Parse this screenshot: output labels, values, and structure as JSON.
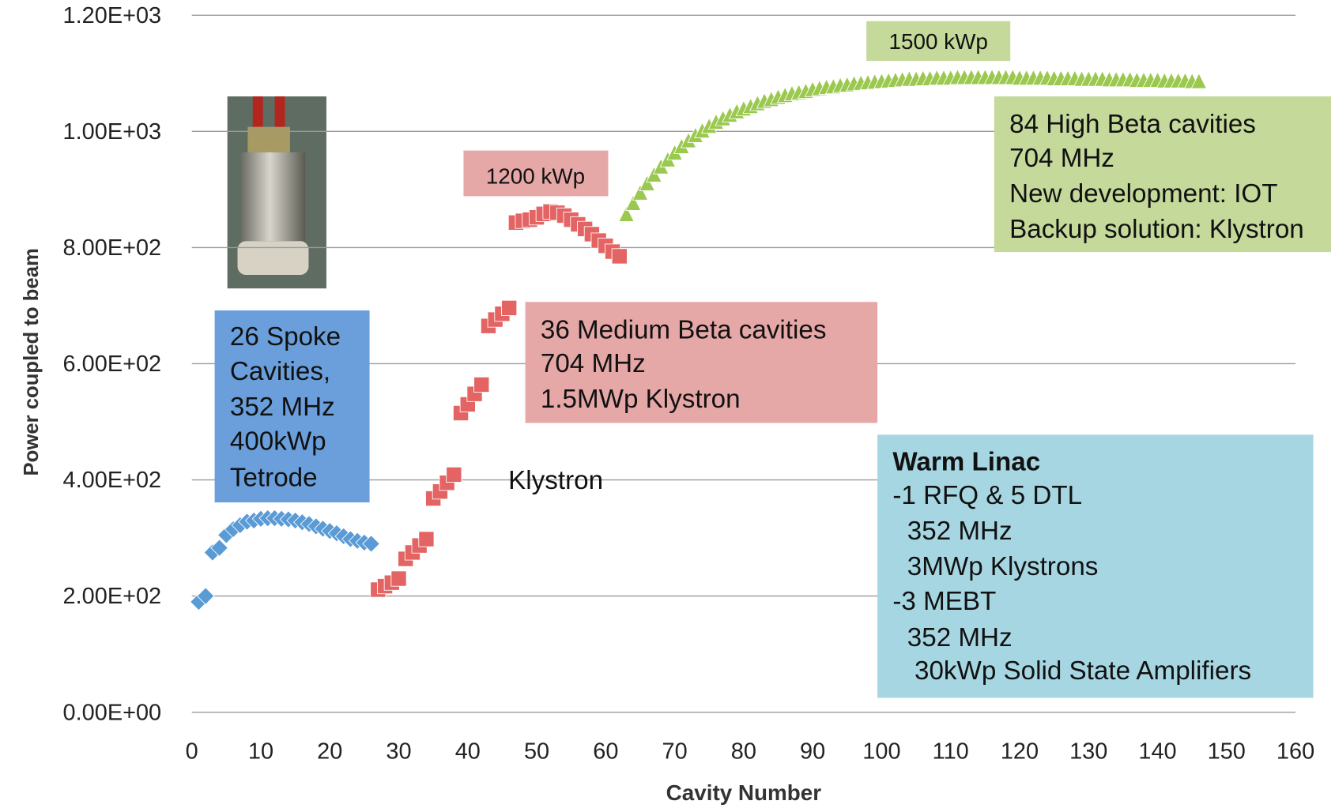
{
  "chart_data": {
    "type": "scatter",
    "y_label": "Power coupled to beam",
    "x_label": "Cavity Number",
    "xlim": [
      0,
      160
    ],
    "xticks": [
      0,
      10,
      20,
      30,
      40,
      50,
      60,
      70,
      80,
      90,
      100,
      110,
      120,
      130,
      140,
      150,
      160
    ],
    "ylim": [
      0,
      1200
    ],
    "yticks": [
      {
        "value": 0,
        "label": "0.00E+00"
      },
      {
        "value": 200,
        "label": "2.00E+02"
      },
      {
        "value": 400,
        "label": "4.00E+02"
      },
      {
        "value": 600,
        "label": "6.00E+02"
      },
      {
        "value": 800,
        "label": "8.00E+02"
      },
      {
        "value": 1000,
        "label": "1.00E+03"
      },
      {
        "value": 1200,
        "label": "1.20E+03"
      }
    ],
    "grid": true,
    "series": [
      {
        "color": "#5b9bd5",
        "marker": "diamond",
        "x": [
          1,
          2,
          3,
          4,
          5,
          6,
          7,
          8,
          9,
          10,
          11,
          12,
          13,
          14,
          15,
          16,
          17,
          18,
          19,
          20,
          21,
          22,
          23,
          24,
          25,
          26
        ],
        "values": [
          190,
          200,
          275,
          283,
          305,
          315,
          322,
          328,
          330,
          333,
          334,
          334,
          333,
          332,
          330,
          327,
          324,
          320,
          316,
          312,
          308,
          303,
          298,
          295,
          292,
          290
        ]
      },
      {
        "color": "#e46464",
        "marker": "square",
        "x": [
          27,
          28,
          29,
          30,
          31,
          32,
          33,
          34,
          35,
          36,
          37,
          38,
          39,
          40,
          41,
          42,
          43,
          44,
          45,
          46,
          47,
          48,
          49,
          50,
          51,
          52,
          53,
          54,
          55,
          56,
          57,
          58,
          59,
          60,
          61,
          62
        ],
        "values": [
          211,
          217,
          223,
          230,
          264,
          275,
          287,
          298,
          368,
          380,
          395,
          409,
          515,
          530,
          548,
          564,
          665,
          676,
          686,
          696,
          843,
          846,
          848,
          852,
          858,
          862,
          860,
          855,
          848,
          840,
          832,
          823,
          812,
          803,
          793,
          785
        ]
      },
      {
        "color": "#9bc94f",
        "marker": "triangle",
        "x": [
          63,
          64,
          65,
          66,
          67,
          68,
          69,
          70,
          71,
          72,
          73,
          74,
          75,
          76,
          77,
          78,
          79,
          80,
          81,
          82,
          83,
          84,
          85,
          86,
          87,
          88,
          89,
          90,
          91,
          92,
          93,
          94,
          95,
          96,
          97,
          98,
          99,
          100,
          101,
          102,
          103,
          104,
          105,
          106,
          107,
          108,
          109,
          110,
          111,
          112,
          113,
          114,
          115,
          116,
          117,
          118,
          119,
          120,
          121,
          122,
          123,
          124,
          125,
          126,
          127,
          128,
          129,
          130,
          131,
          132,
          133,
          134,
          135,
          136,
          137,
          138,
          139,
          140,
          141,
          142,
          143,
          144,
          145,
          146
        ],
        "values": [
          855,
          874,
          892,
          908,
          923,
          937,
          949,
          961,
          972,
          982,
          991,
          999,
          1007,
          1014,
          1020,
          1026,
          1032,
          1037,
          1041,
          1046,
          1050,
          1053,
          1057,
          1060,
          1063,
          1065,
          1067,
          1070,
          1072,
          1074,
          1075,
          1077,
          1078,
          1080,
          1081,
          1082,
          1083,
          1084,
          1085,
          1086,
          1087,
          1088,
          1088,
          1089,
          1089,
          1090,
          1090,
          1090,
          1091,
          1091,
          1091,
          1091,
          1091,
          1091,
          1091,
          1091,
          1091,
          1090,
          1090,
          1090,
          1090,
          1090,
          1089,
          1089,
          1089,
          1089,
          1088,
          1088,
          1088,
          1088,
          1087,
          1087,
          1087,
          1087,
          1086,
          1086,
          1086,
          1086,
          1085,
          1085,
          1085,
          1085,
          1084,
          1084
        ]
      }
    ],
    "annotations": [
      {
        "lines": [
          "1500 kWp"
        ],
        "box_color": "#c4d99a"
      },
      {
        "lines": [
          "84 High Beta cavities",
          "704 MHz",
          "New development: IOT",
          "Backup solution: Klystron"
        ],
        "box_color": "#c4d99a"
      },
      {
        "lines": [
          "1200 kWp"
        ],
        "box_color": "#e6a7a7"
      },
      {
        "lines": [
          "36 Medium Beta cavities",
          "704 MHz",
          "1.5MWp Klystron"
        ],
        "box_color": "#e6a7a7"
      },
      {
        "lines": [
          "Klystron"
        ]
      },
      {
        "lines": [
          "26 Spoke",
          "Cavities,",
          "352 MHz",
          "400kWp",
          "Tetrode"
        ],
        "box_color": "#6a9fdc"
      },
      {
        "lines": [
          "Warm Linac",
          "-1 RFQ & 5 DTL",
          "  352 MHz",
          "  3MWp Klystrons",
          "-3 MEBT",
          "  352 MHz",
          "   30kWp Solid State Amplifiers"
        ],
        "box_color": "#a6d6e2"
      }
    ]
  }
}
